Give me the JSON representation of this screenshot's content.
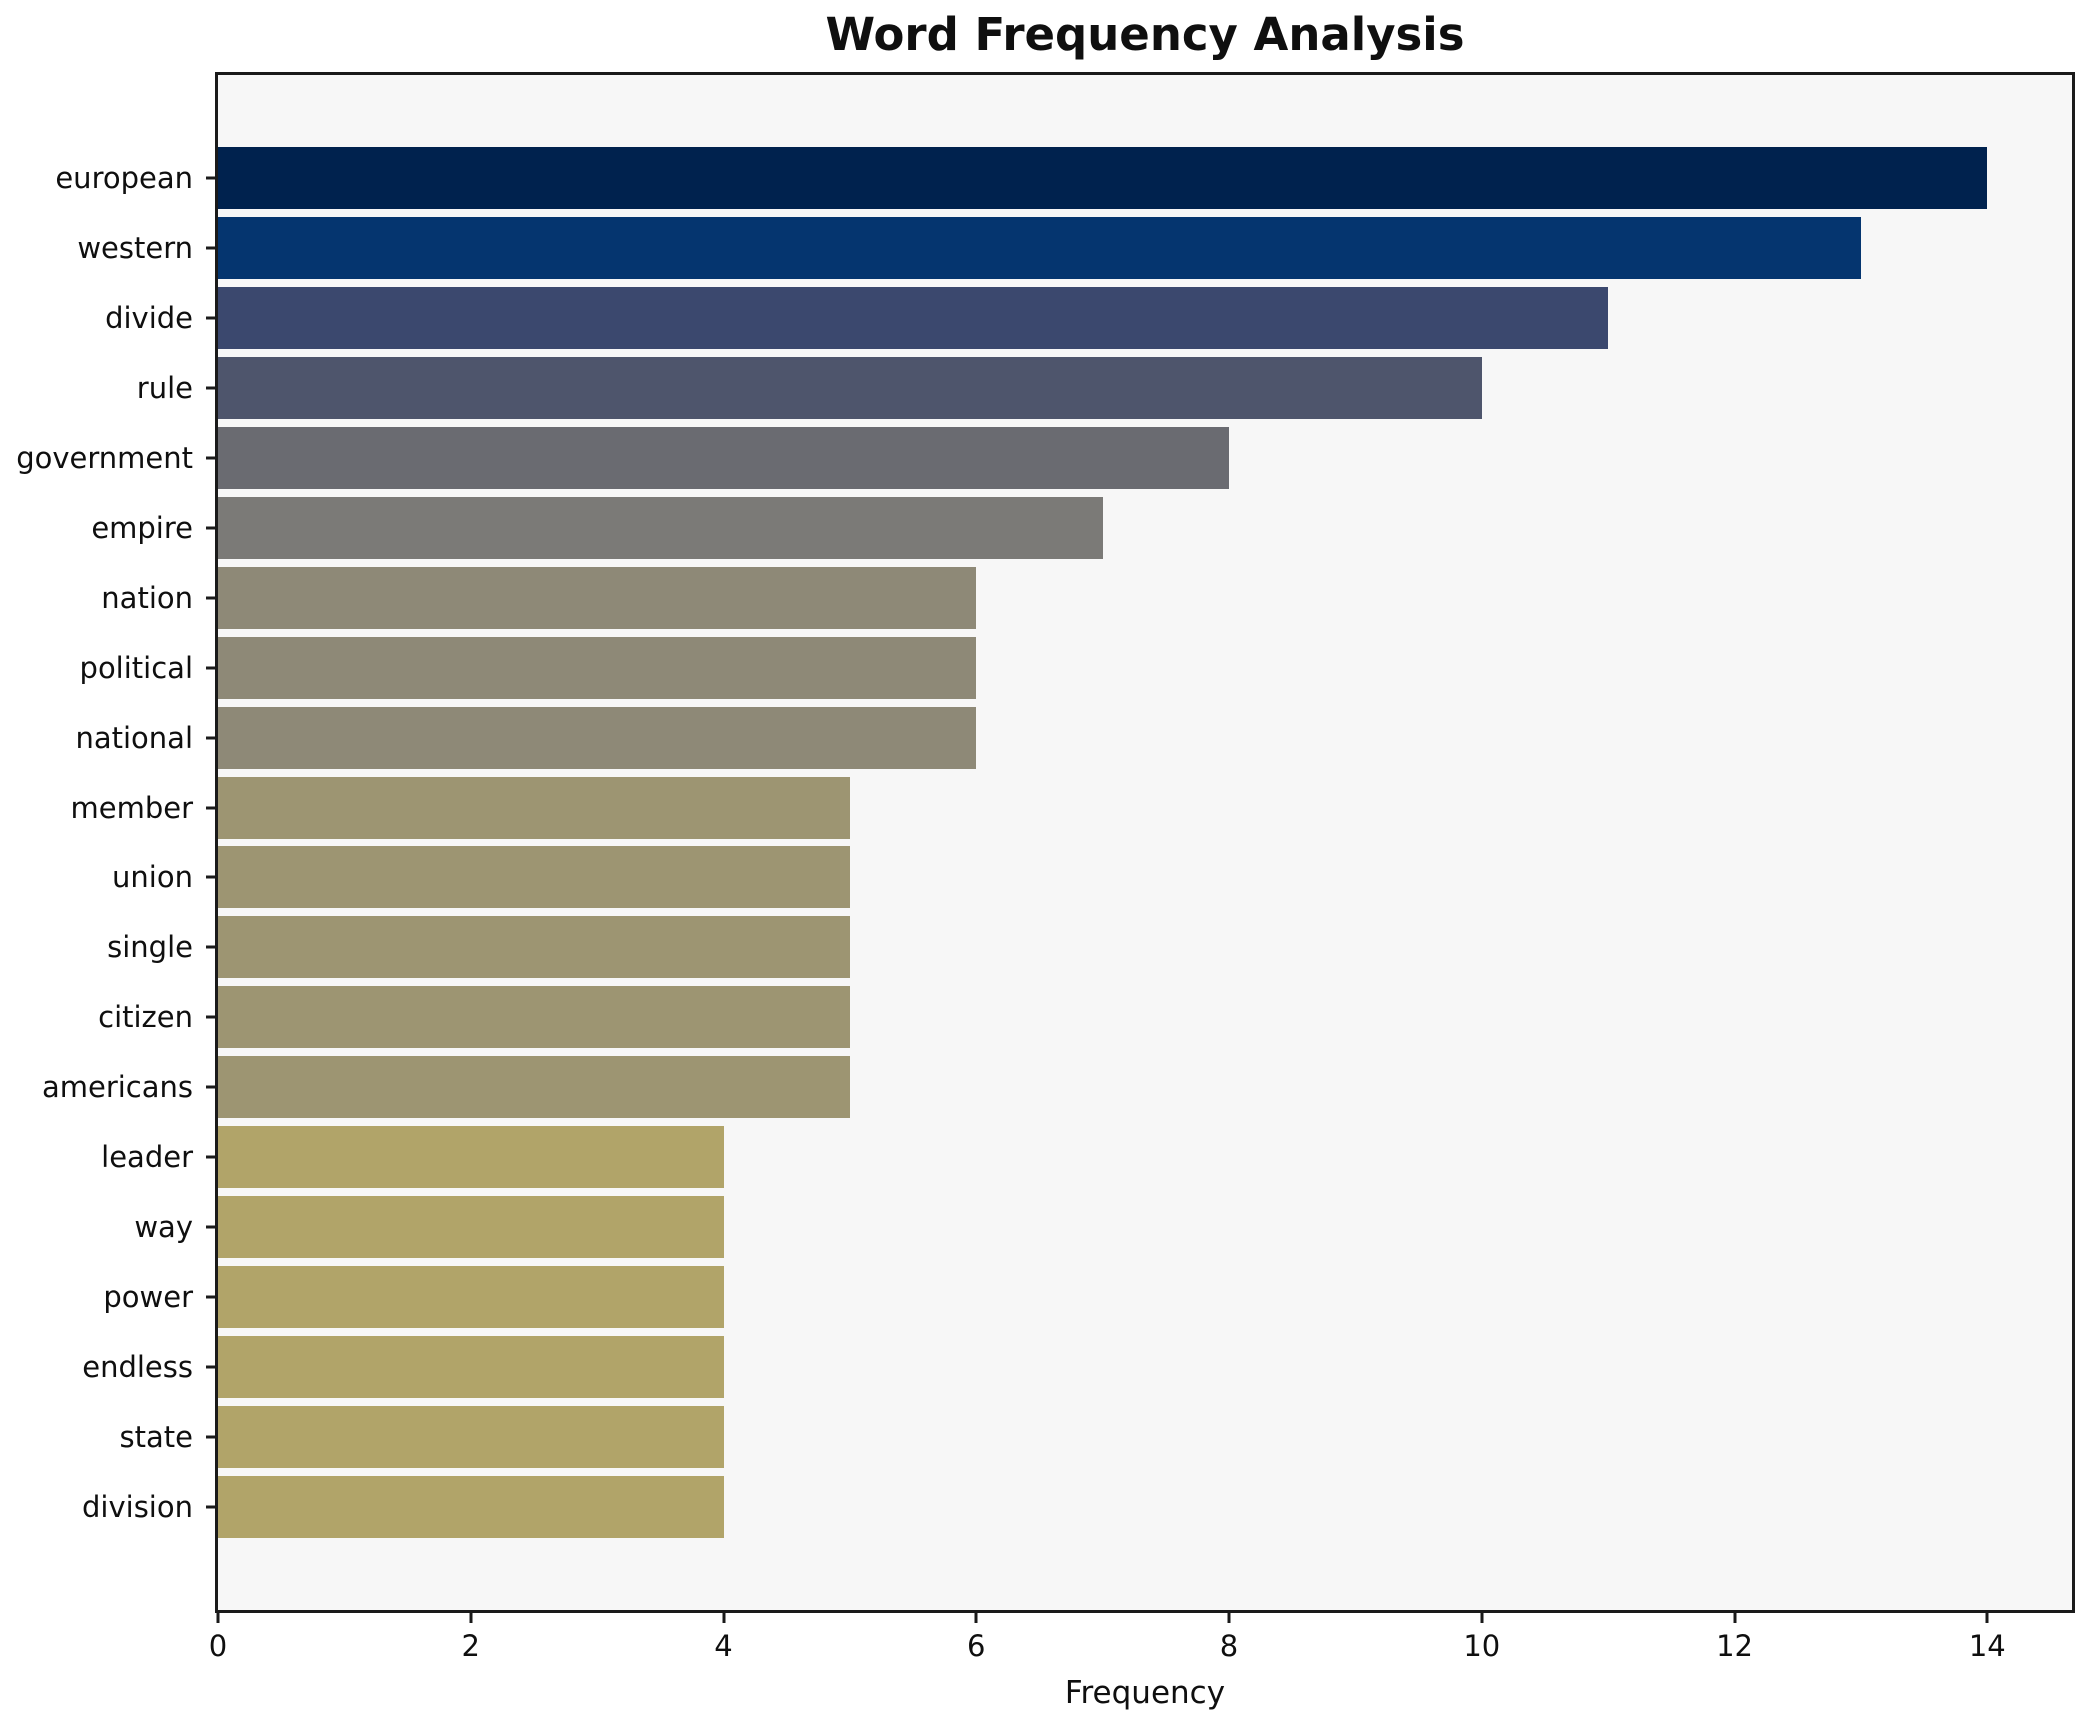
{
  "title": "Word Frequency Analysis",
  "chart_data": {
    "type": "bar",
    "orientation": "horizontal",
    "title": "Word Frequency Analysis",
    "xlabel": "Frequency",
    "ylabel": "",
    "categories": [
      "european",
      "western",
      "divide",
      "rule",
      "government",
      "empire",
      "nation",
      "political",
      "national",
      "member",
      "union",
      "single",
      "citizen",
      "americans",
      "leader",
      "way",
      "power",
      "endless",
      "state",
      "division"
    ],
    "values": [
      14,
      13,
      11,
      10,
      8,
      7,
      6,
      6,
      6,
      5,
      5,
      5,
      5,
      5,
      4,
      4,
      4,
      4,
      4,
      4
    ],
    "bar_colors": [
      "#00224e",
      "#05356f",
      "#3b486e",
      "#4e556c",
      "#6a6b71",
      "#7b7a77",
      "#8e8977",
      "#8e8977",
      "#8e8977",
      "#9d9572",
      "#9d9572",
      "#9d9572",
      "#9d9572",
      "#9d9572",
      "#b1a469",
      "#b1a469",
      "#b1a469",
      "#b1a469",
      "#b1a469",
      "#b1a469"
    ],
    "xlim": [
      0,
      14.67
    ],
    "x_ticks": [
      0,
      2,
      4,
      6,
      8,
      10,
      12,
      14
    ],
    "grid": false,
    "legend_position": "none",
    "plot_bg": "#f7f7f7",
    "fig_bg": "#ffffff",
    "spine_color": "#1a1a1a",
    "text_color": "#0f0f0f"
  }
}
